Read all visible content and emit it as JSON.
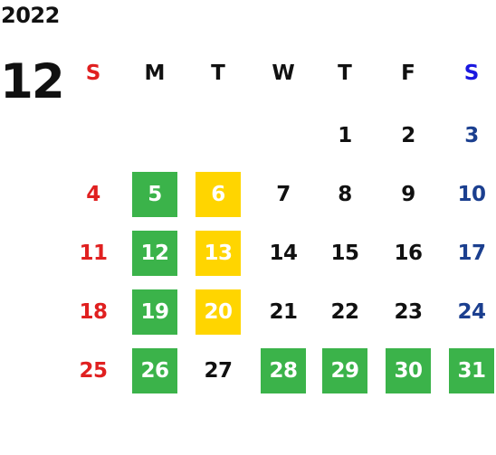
{
  "calendar": {
    "year": "2022",
    "month": "12",
    "weekdays": [
      "S",
      "M",
      "T",
      "W",
      "T",
      "F",
      "S"
    ],
    "colors": {
      "sunday": "#e02020",
      "saturday_header": "#1a18e0",
      "saturday": "#1b3f8f",
      "weekday": "#111111",
      "green_highlight": "#3bb34a",
      "yellow_highlight": "#ffd500"
    },
    "weeks": [
      [
        "",
        "",
        "",
        "",
        "1",
        "2",
        "3"
      ],
      [
        "4",
        "5",
        "6",
        "7",
        "8",
        "9",
        "10"
      ],
      [
        "11",
        "12",
        "13",
        "14",
        "15",
        "16",
        "17"
      ],
      [
        "18",
        "19",
        "20",
        "21",
        "22",
        "23",
        "24"
      ],
      [
        "25",
        "26",
        "27",
        "28",
        "29",
        "30",
        "31"
      ]
    ],
    "green_days": [
      "5",
      "12",
      "19",
      "26",
      "28",
      "29",
      "30",
      "31"
    ],
    "yellow_days": [
      "6",
      "13",
      "20"
    ]
  }
}
